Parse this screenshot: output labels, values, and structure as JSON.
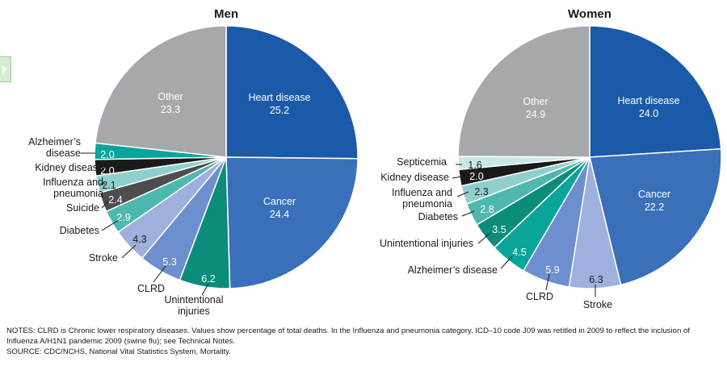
{
  "side_tab": {
    "icon": "chevron-right-icon"
  },
  "chart_data": [
    {
      "type": "pie",
      "title": "Men",
      "slices": [
        {
          "label": "Heart disease",
          "value": 25.2,
          "color": "#1a5aa8",
          "placement": "inside"
        },
        {
          "label": "Cancer",
          "value": 24.4,
          "color": "#3a6fba",
          "placement": "inside"
        },
        {
          "label": "Unintentional injuries",
          "value": 6.2,
          "color": "#0c8c7a",
          "placement": "inside"
        },
        {
          "label": "CLRD",
          "value": 5.3,
          "color": "#6d8fcf",
          "placement": "inside"
        },
        {
          "label": "Stroke",
          "value": 4.3,
          "color": "#9db0de",
          "placement": "inside"
        },
        {
          "label": "Diabetes",
          "value": 2.9,
          "color": "#4db8b0",
          "placement": "inside"
        },
        {
          "label": "Suicide",
          "value": 2.4,
          "color": "#4d4d4d",
          "placement": "inside"
        },
        {
          "label": "Influenza and pneumonia",
          "value": 2.1,
          "color": "#8fd0cc",
          "placement": "inside"
        },
        {
          "label": "Kidney disease",
          "value": 2.0,
          "color": "#1a1a1a",
          "placement": "inside"
        },
        {
          "label": "Alzheimer’s disease",
          "value": 2.0,
          "color": "#0aa59a",
          "placement": "inside"
        },
        {
          "label": "Other",
          "value": 23.3,
          "color": "#a6a8ab",
          "placement": "inside"
        }
      ]
    },
    {
      "type": "pie",
      "title": "Women",
      "slices": [
        {
          "label": "Heart disease",
          "value": 24.0,
          "color": "#1a5aa8",
          "placement": "inside"
        },
        {
          "label": "Cancer",
          "value": 22.2,
          "color": "#3a6fba",
          "placement": "inside"
        },
        {
          "label": "Stroke",
          "value": 6.3,
          "color": "#9db0de",
          "placement": "outside"
        },
        {
          "label": "CLRD",
          "value": 5.9,
          "color": "#6d8fcf",
          "placement": "inside"
        },
        {
          "label": "Alzheimer’s disease",
          "value": 4.5,
          "color": "#0aa59a",
          "placement": "inside"
        },
        {
          "label": "Unintentional injuries",
          "value": 3.5,
          "color": "#0c8c7a",
          "placement": "inside"
        },
        {
          "label": "Diabetes",
          "value": 2.8,
          "color": "#4db8b0",
          "placement": "inside"
        },
        {
          "label": "Influenza and pneumonia",
          "value": 2.3,
          "color": "#8fd0cc",
          "placement": "inside"
        },
        {
          "label": "Kidney disease",
          "value": 2.0,
          "color": "#1a1a1a",
          "placement": "inside"
        },
        {
          "label": "Septicemia",
          "value": 1.6,
          "color": "#c8e8e8",
          "placement": "inside"
        },
        {
          "label": "Other",
          "value": 24.9,
          "color": "#a6a8ab",
          "placement": "inside"
        }
      ]
    }
  ],
  "labels": {
    "men": {
      "heart": [
        "Heart disease"
      ],
      "cancer": [
        "Cancer"
      ],
      "unint": [
        "Unintentional",
        "injuries"
      ],
      "clrd": [
        "CLRD"
      ],
      "stroke": [
        "Stroke"
      ],
      "diabetes": [
        "Diabetes"
      ],
      "suicide": [
        "Suicide"
      ],
      "flu": [
        "Influenza and",
        "pneumonia"
      ],
      "kidney": [
        "Kidney disease"
      ],
      "alz": [
        "Alzheimer’s",
        "disease"
      ],
      "other": [
        "Other"
      ]
    },
    "women": {
      "heart": [
        "Heart disease"
      ],
      "cancer": [
        "Cancer"
      ],
      "stroke": [
        "Stroke"
      ],
      "clrd": [
        "CLRD"
      ],
      "alz": [
        "Alzheimer’s disease"
      ],
      "unint": [
        "Unintentional injuries"
      ],
      "diabetes": [
        "Diabetes"
      ],
      "flu": [
        "Influenza and",
        "pneumonia"
      ],
      "kidney": [
        "Kidney disease"
      ],
      "septicemia": [
        "Septicemia"
      ],
      "other": [
        "Other"
      ]
    }
  },
  "notes": {
    "notes_text": "NOTES: CLRD is Chronic lower respiratory diseases. Values show percentage of total deaths. In the Influenza and pneumonia category, ICD–10 code J09 was retitled in 2009 to reflect the inclusion of Influenza A/H1N1 pandemic 2009 (swine flu); see Technical Notes.",
    "source_text": "SOURCE: CDC/NCHS, National Vital Statistics System, Mortality."
  }
}
